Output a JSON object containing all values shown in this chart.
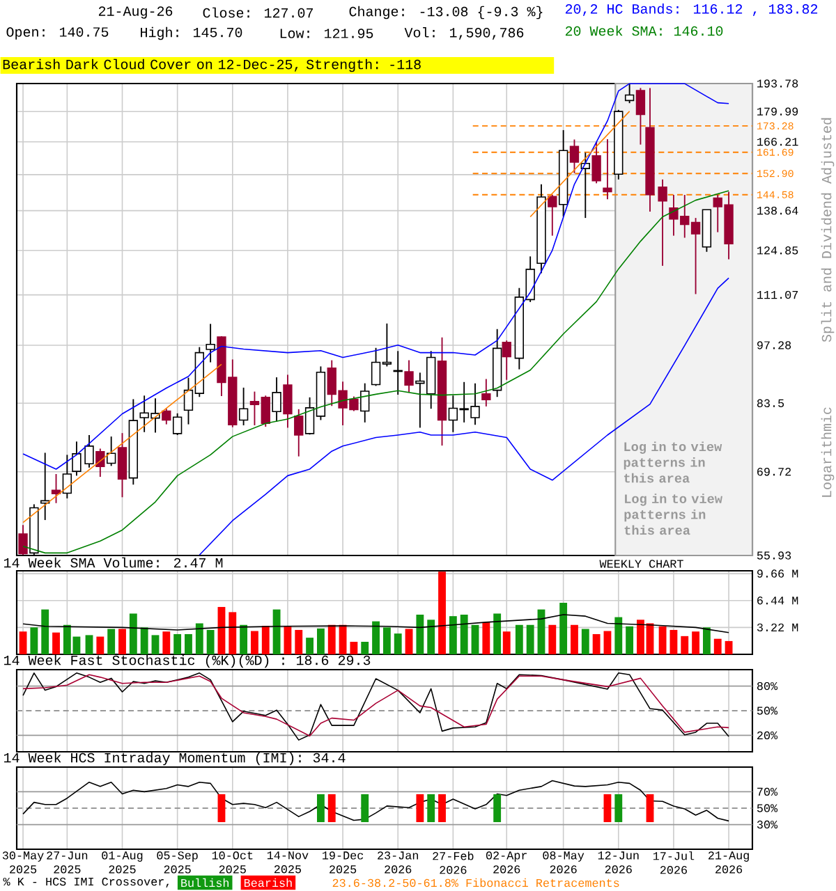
{
  "chart_data": [
    {
      "type": "candlestick",
      "ylabel": "Split and Dividend Adjusted",
      "log": true,
      "grid": true,
      "tick_labels": "y",
      "colors": [
        "#990033",
        "#ffffff",
        "#ffffff",
        "#990033",
        "#ffffff",
        "#ffffff",
        "#ffffff",
        "#990033",
        "#ffffff",
        "#990033",
        "#ffffff",
        "#ffffff",
        "#ffffff",
        "#990033",
        "#ffffff",
        "#ffffff",
        "#ffffff",
        "#ffffff",
        "#990033",
        "#990033",
        "#ffffff",
        "#990033",
        "#990033",
        "#ffffff",
        "#990033",
        "#990033",
        "#ffffff",
        "#ffffff",
        "#990033",
        "#990033",
        "#990033",
        "#ffffff",
        "#ffffff",
        "#ffffff",
        "#ffffff",
        "#990033",
        "#ffffff",
        "#ffffff",
        "#990033",
        "#ffffff",
        "#ffffff",
        "#ffffff",
        "#990033",
        "#ffffff",
        "#990033",
        "#ffffff",
        "#ffffff",
        "#ffffff",
        "#990033",
        "#ffffff",
        "#990033",
        "#ffffff",
        "#990033",
        "#990033",
        "#ffffff",
        "#ffffff",
        "#990033",
        "#990033",
        "#990033",
        "#990033",
        "#990033",
        "#990033",
        "#ffffff",
        "#990033",
        "#990033"
      ],
      "xlim": [
        "2025-05-26",
        "2026-09-05"
      ],
      "ylim": [
        55.93,
        193.78
      ],
      "xticks": [
        {
          "value": "2025-05-30",
          "label": null
        },
        {
          "value": "2025-06-27",
          "label": null
        },
        {
          "value": "2025-08-01",
          "label": null
        },
        {
          "value": "2025-09-05",
          "label": null
        },
        {
          "value": "2025-10-10",
          "label": null
        },
        {
          "value": "2025-11-14",
          "label": null
        },
        {
          "value": "2025-12-19",
          "label": null
        },
        {
          "value": "2026-01-23",
          "label": null
        },
        {
          "value": "2026-02-27",
          "label": null
        },
        {
          "value": "2026-04-02",
          "label": null
        },
        {
          "value": "2026-05-08",
          "label": null
        },
        {
          "value": "2026-06-12",
          "label": null
        },
        {
          "value": "2026-07-17",
          "label": null
        },
        {
          "value": "2026-08-21",
          "label": null
        }
      ],
      "yticks": [
        55.93,
        69.72,
        83.5,
        97.28,
        111.07,
        124.85,
        138.64,
        {
          "value": 152.42,
          "label": null
        },
        166.21,
        179.99,
        193.78
      ],
      "x": [
        "2025-05-30",
        "2025-06-06",
        "2025-06-13",
        "2025-06-20",
        "2025-06-27",
        "2025-07-03",
        "2025-07-11",
        "2025-07-18",
        "2025-07-25",
        "2025-08-01",
        "2025-08-08",
        "2025-08-15",
        "2025-08-22",
        "2025-08-29",
        "2025-09-05",
        "2025-09-12",
        "2025-09-19",
        "2025-09-26",
        "2025-10-03",
        "2025-10-10",
        "2025-10-17",
        "2025-10-24",
        "2025-10-31",
        "2025-11-07",
        "2025-11-14",
        "2025-11-21",
        "2025-11-28",
        "2025-12-05",
        "2025-12-12",
        "2025-12-19",
        "2025-12-26",
        "2026-01-02",
        "2026-01-09",
        "2026-01-16",
        "2026-01-23",
        "2026-01-30",
        "2026-02-06",
        "2026-02-13",
        "2026-02-20",
        "2026-02-27",
        "2026-03-06",
        "2026-03-13",
        "2026-03-20",
        "2026-03-27",
        "2026-04-02",
        "2026-04-10",
        "2026-04-17",
        "2026-04-24",
        "2026-05-01",
        "2026-05-08",
        "2026-05-15",
        "2026-05-22",
        "2026-05-29",
        "2026-06-05",
        "2026-06-12",
        "2026-06-19",
        "2026-06-26",
        "2026-07-02",
        "2026-07-10",
        "2026-07-17",
        "2026-07-24",
        "2026-07-31",
        "2026-08-07",
        "2026-08-14",
        "2026-08-21"
      ],
      "ohlc": [
        [
          59.2,
          60.6,
          56.0,
          56.2
        ],
        [
          56.3,
          64.0,
          56.0,
          63.4
        ],
        [
          64.2,
          73.3,
          61.4,
          64.6
        ],
        [
          66.4,
          69.3,
          64.2,
          65.8
        ],
        [
          65.9,
          72.9,
          65.0,
          69.3
        ],
        [
          69.8,
          75.5,
          69.0,
          73.1
        ],
        [
          71.2,
          76.8,
          70.5,
          74.6
        ],
        [
          73.5,
          74.1,
          68.8,
          70.7
        ],
        [
          71.3,
          76.5,
          70.8,
          73.2
        ],
        [
          74.3,
          77.2,
          65.2,
          68.4
        ],
        [
          68.6,
          84.4,
          67.4,
          79.8
        ],
        [
          80.4,
          85.2,
          77.4,
          81.4
        ],
        [
          80.3,
          84.6,
          77.3,
          81.3
        ],
        [
          81.8,
          82.3,
          79.0,
          79.9
        ],
        [
          77.1,
          81.3,
          76.8,
          80.5
        ],
        [
          82.0,
          89.3,
          79.0,
          86.4
        ],
        [
          85.7,
          96.8,
          84.9,
          95.4
        ],
        [
          96.2,
          102.9,
          93.0,
          97.5
        ],
        [
          99.4,
          99.6,
          85.1,
          88.2
        ],
        [
          89.4,
          93.7,
          78.4,
          78.9
        ],
        [
          79.9,
          87.0,
          78.8,
          82.3
        ],
        [
          83.9,
          86.1,
          78.8,
          83.2
        ],
        [
          84.8,
          85.2,
          78.5,
          79.2
        ],
        [
          81.7,
          89.4,
          79.6,
          85.9
        ],
        [
          87.6,
          90.0,
          78.3,
          81.2
        ],
        [
          80.7,
          82.2,
          72.6,
          76.8
        ],
        [
          77.1,
          84.8,
          76.9,
          82.5
        ],
        [
          80.7,
          92.0,
          79.9,
          90.6
        ],
        [
          91.6,
          93.5,
          82.9,
          85.5
        ],
        [
          86.3,
          88.4,
          78.8,
          82.5
        ],
        [
          84.4,
          85.0,
          81.8,
          82.1
        ],
        [
          81.8,
          88.0,
          79.4,
          86.2
        ],
        [
          87.7,
          96.6,
          87.4,
          93.0
        ],
        [
          92.6,
          103.0,
          92.0,
          93.0
        ],
        [
          90.8,
          95.8,
          85.4,
          91.0
        ],
        [
          90.7,
          93.5,
          86.0,
          87.6
        ],
        [
          88.0,
          90.5,
          78.3,
          88.5
        ],
        [
          85.6,
          95.8,
          82.3,
          94.2
        ],
        [
          93.3,
          99.3,
          74.7,
          79.9
        ],
        [
          79.9,
          85.2,
          77.4,
          82.4
        ],
        [
          82.1,
          88.3,
          79.4,
          82.3
        ],
        [
          80.4,
          88.0,
          78.9,
          82.8
        ],
        [
          85.6,
          89.0,
          82.8,
          84.3
        ],
        [
          86.4,
          101.5,
          84.9,
          96.5
        ],
        [
          98.0,
          98.5,
          88.8,
          94.4
        ],
        [
          94.0,
          113.1,
          91.3,
          110.4
        ],
        [
          109.7,
          122.9,
          109.0,
          118.8
        ],
        [
          120.7,
          148.6,
          117.6,
          143.7
        ],
        [
          143.9,
          144.5,
          129.8,
          140.1
        ],
        [
          140.9,
          171.4,
          136.5,
          162.4
        ],
        [
          164.2,
          167.2,
          153.0,
          157.5
        ],
        [
          154.9,
          161.5,
          136.0,
          157.0
        ],
        [
          160.2,
          166.1,
          149.0,
          150.0
        ],
        [
          147.1,
          167.3,
          142.9,
          145.7
        ],
        [
          152.6,
          180.8,
          150.5,
          180.0
        ],
        [
          185.3,
          193.5,
          184.0,
          188.0
        ],
        [
          190.2,
          191.5,
          165.0,
          178.6
        ],
        [
          172.5,
          191.5,
          138.3,
          144.6
        ],
        [
          147.5,
          150.5,
          119.9,
          142.2
        ],
        [
          139.6,
          144.5,
          129.8,
          135.6
        ],
        [
          136.6,
          144.5,
          129.1,
          133.7
        ],
        [
          134.4,
          136.0,
          111.3,
          130.4
        ],
        [
          126.0,
          139.0,
          124.4,
          139.0
        ],
        [
          143.3,
          144.5,
          131.0,
          140.1
        ],
        [
          140.75,
          145.7,
          121.95,
          127.07
        ]
      ],
      "series": [
        {
          "type": "line",
          "color": "#0000ff",
          "x": [
            "2025-05-30",
            "2025-06-20",
            "2025-07-03",
            "2025-08-01",
            "2025-08-29",
            "2025-09-12",
            "2025-09-26",
            "2025-10-03",
            "2025-10-17",
            "2025-11-14",
            "2025-12-05",
            "2025-12-19",
            "2026-01-09",
            "2026-01-23",
            "2026-02-06",
            "2026-02-27",
            "2026-03-13",
            "2026-03-27",
            "2026-04-17",
            "2026-05-01",
            "2026-05-15",
            "2026-06-05",
            "2026-06-12",
            "2026-06-19",
            "2026-07-02",
            "2026-07-24",
            "2026-08-14",
            "2026-08-21"
          ],
          "values": [
            73.1,
            70.2,
            72.9,
            81.2,
            86.9,
            89.6,
            95.4,
            97.0,
            96.3,
            95.4,
            95.9,
            94.2,
            95.9,
            97.3,
            95.4,
            95.4,
            94.8,
            98.5,
            111.8,
            124.9,
            148.6,
            175.6,
            190.0,
            193.7,
            193.7,
            193.7,
            184.2,
            183.82
          ]
        },
        {
          "type": "line",
          "color": "#0000ff",
          "x": [
            "2025-09-19",
            "2025-10-10",
            "2025-10-31",
            "2025-11-14",
            "2025-11-28",
            "2025-12-12",
            "2025-12-19",
            "2026-01-09",
            "2026-01-23",
            "2026-02-06",
            "2026-02-13",
            "2026-02-27",
            "2026-03-13",
            "2026-04-02",
            "2026-04-17",
            "2026-05-01",
            "2026-06-05",
            "2026-07-02",
            "2026-07-24",
            "2026-08-14",
            "2026-08-21"
          ],
          "values": [
            56.0,
            61.3,
            65.7,
            69.0,
            70.2,
            73.6,
            74.6,
            76.3,
            76.8,
            77.4,
            76.8,
            76.8,
            77.4,
            76.3,
            70.2,
            68.2,
            76.8,
            83.3,
            97.2,
            113.0,
            116.12
          ]
        },
        {
          "type": "line",
          "color": "#008000",
          "x": [
            "2025-05-30",
            "2025-06-13",
            "2025-06-27",
            "2025-07-18",
            "2025-08-01",
            "2025-08-22",
            "2025-09-05",
            "2025-09-26",
            "2025-10-10",
            "2025-10-31",
            "2025-11-14",
            "2025-12-05",
            "2025-12-19",
            "2026-01-09",
            "2026-01-23",
            "2026-02-06",
            "2026-02-20",
            "2026-03-13",
            "2026-03-27",
            "2026-04-17",
            "2026-05-08",
            "2026-05-29",
            "2026-06-12",
            "2026-06-26",
            "2026-07-10",
            "2026-07-31",
            "2026-08-21"
          ],
          "values": [
            57.3,
            56.3,
            56.3,
            58.1,
            59.8,
            64.4,
            69.0,
            72.9,
            76.5,
            79.2,
            80.1,
            82.7,
            84.1,
            85.5,
            86.3,
            85.5,
            85.3,
            85.6,
            86.9,
            91.1,
            100.2,
            109.1,
            118.9,
            127.9,
            136.4,
            142.5,
            146.1
          ]
        },
        {
          "type": "line",
          "color": "#ff8000",
          "x": [
            "2025-05-30",
            "2025-10-03"
          ],
          "values": [
            61.0,
            92.5
          ]
        },
        {
          "type": "line",
          "color": "#ff8000",
          "x": [
            "2026-04-17",
            "2026-06-19"
          ],
          "values": [
            136.4,
            180.1
          ]
        }
      ],
      "ref_lines": [
        {
          "axis": "y",
          "value": 173.28,
          "label": "173.28",
          "color": "#ff8000",
          "line_style": "dashed"
        },
        {
          "axis": "y",
          "value": 161.69,
          "label": "161.69",
          "color": "#ff8000",
          "line_style": "dashed"
        },
        {
          "axis": "y",
          "value": 152.9,
          "label": "152.90",
          "color": "#ff8000",
          "line_style": "dashed"
        },
        {
          "axis": "y",
          "value": 144.58,
          "label": "144.58",
          "color": "#ff8000",
          "line_style": "dashed"
        }
      ],
      "bands": [
        {
          "axis": "x",
          "from": "2026-06-10",
          "to": "2026-09-05",
          "label": "Log in to view patterns in this area",
          "color": "#f2f2f2"
        }
      ],
      "annotations": [
        "21-Aug-26",
        "Close: 127.07",
        "Change: -13.08 {-9.3 %}",
        "Open: 140.75",
        "High: 145.70",
        "Low: 121.95",
        "Vol: 1,590,786",
        "20,2 HC Bands: 116.12 , 183.82",
        "20 Week SMA: 146.10",
        "Bearish Dark Cloud Cover on 12-Dec-25, Strength: -118",
        "Logarithmic",
        "WEEKLY CHART",
        "Log in to view patterns in this area",
        "23.6-38.2-50-61.8% Fibonacci Retracements"
      ]
    },
    {
      "type": "bar",
      "title": "14 Week SMA Volume: 2.47 M",
      "grid": true,
      "tick_labels": "y",
      "xlim": [
        "2025-05-26",
        "2026-09-05"
      ],
      "ylim": [
        0,
        10
      ],
      "xticks": [
        {
          "value": "2025-05-30",
          "label": null
        },
        {
          "value": "2025-06-27",
          "label": null
        },
        {
          "value": "2025-08-01",
          "label": null
        },
        {
          "value": "2025-09-05",
          "label": null
        },
        {
          "value": "2025-10-10",
          "label": null
        },
        {
          "value": "2025-11-14",
          "label": null
        },
        {
          "value": "2025-12-19",
          "label": null
        },
        {
          "value": "2026-01-23",
          "label": null
        },
        {
          "value": "2026-02-27",
          "label": null
        },
        {
          "value": "2026-04-02",
          "label": null
        },
        {
          "value": "2026-05-08",
          "label": null
        },
        {
          "value": "2026-06-12",
          "label": null
        },
        {
          "value": "2026-07-17",
          "label": null
        },
        {
          "value": "2026-08-21",
          "label": null
        }
      ],
      "yticks": [
        {
          "value": 3.22,
          "label": "3.22 M"
        },
        {
          "value": 6.44,
          "label": "6.44 M"
        },
        {
          "value": 9.66,
          "label": "9.66 M"
        }
      ],
      "x": [
        "2025-05-30",
        "2025-06-06",
        "2025-06-13",
        "2025-06-20",
        "2025-06-27",
        "2025-07-03",
        "2025-07-11",
        "2025-07-18",
        "2025-07-25",
        "2025-08-01",
        "2025-08-08",
        "2025-08-15",
        "2025-08-22",
        "2025-08-29",
        "2025-09-05",
        "2025-09-12",
        "2025-09-19",
        "2025-09-26",
        "2025-10-03",
        "2025-10-10",
        "2025-10-17",
        "2025-10-24",
        "2025-10-31",
        "2025-11-07",
        "2025-11-14",
        "2025-11-21",
        "2025-11-28",
        "2025-12-05",
        "2025-12-12",
        "2025-12-19",
        "2025-12-26",
        "2026-01-02",
        "2026-01-09",
        "2026-01-16",
        "2026-01-23",
        "2026-01-30",
        "2026-02-06",
        "2026-02-13",
        "2026-02-20",
        "2026-02-27",
        "2026-03-06",
        "2026-03-13",
        "2026-03-20",
        "2026-03-27",
        "2026-04-02",
        "2026-04-10",
        "2026-04-17",
        "2026-04-24",
        "2026-05-01",
        "2026-05-08",
        "2026-05-15",
        "2026-05-22",
        "2026-05-29",
        "2026-06-05",
        "2026-06-12",
        "2026-06-19",
        "2026-06-26",
        "2026-07-02",
        "2026-07-10",
        "2026-07-17",
        "2026-07-24",
        "2026-07-31",
        "2026-08-07",
        "2026-08-14",
        "2026-08-21"
      ],
      "series": [
        {
          "type": "bar",
          "values": [
            2.73,
            3.22,
            5.37,
            2.61,
            3.52,
            2.12,
            2.3,
            2.12,
            3.04,
            3.04,
            4.88,
            3.22,
            2.3,
            2.73,
            2.42,
            2.42,
            3.71,
            2.92,
            5.67,
            5.05,
            3.52,
            2.79,
            3.41,
            5.37,
            3.35,
            2.92,
            1.99,
            3.09,
            3.52,
            3.52,
            1.5,
            1.5,
            3.95,
            3.22,
            2.49,
            3.04,
            4.75,
            4.14,
            9.9,
            4.57,
            4.75,
            3.52,
            3.84,
            4.88,
            2.73,
            3.52,
            3.52,
            5.37,
            3.52,
            6.17,
            3.52,
            3.04,
            2.42,
            2.79,
            4.45,
            3.35,
            4.14,
            3.71,
            3.35,
            2.92,
            2.18,
            2.73,
            3.22,
            1.86,
            1.59
          ],
          "colors": [
            "#ff0000",
            "#119911",
            "#119911",
            "#ff0000",
            "#119911",
            "#119911",
            "#119911",
            "#ff0000",
            "#119911",
            "#ff0000",
            "#119911",
            "#119911",
            "#119911",
            "#ff0000",
            "#119911",
            "#119911",
            "#119911",
            "#119911",
            "#ff0000",
            "#ff0000",
            "#119911",
            "#ff0000",
            "#ff0000",
            "#119911",
            "#ff0000",
            "#ff0000",
            "#119911",
            "#119911",
            "#ff0000",
            "#ff0000",
            "#ff0000",
            "#119911",
            "#119911",
            "#119911",
            "#119911",
            "#ff0000",
            "#119911",
            "#119911",
            "#ff0000",
            "#119911",
            "#119911",
            "#119911",
            "#ff0000",
            "#119911",
            "#ff0000",
            "#119911",
            "#119911",
            "#119911",
            "#ff0000",
            "#119911",
            "#ff0000",
            "#119911",
            "#ff0000",
            "#ff0000",
            "#119911",
            "#119911",
            "#ff0000",
            "#ff0000",
            "#ff0000",
            "#ff0000",
            "#ff0000",
            "#ff0000",
            "#119911",
            "#ff0000",
            "#ff0000"
          ]
        },
        {
          "type": "line",
          "color": "#000000",
          "x": [
            "2025-05-30",
            "2025-06-13",
            "2025-08-01",
            "2025-09-05",
            "2025-10-03",
            "2025-11-07",
            "2025-12-19",
            "2026-01-16",
            "2026-02-06",
            "2026-02-27",
            "2026-03-20",
            "2026-04-24",
            "2026-05-08",
            "2026-05-22",
            "2026-06-05",
            "2026-07-02",
            "2026-07-31",
            "2026-08-21"
          ],
          "values": [
            3.65,
            3.35,
            3.22,
            2.92,
            3.22,
            3.35,
            3.41,
            3.35,
            3.22,
            3.52,
            3.84,
            4.24,
            4.75,
            4.57,
            3.71,
            3.52,
            3.22,
            2.6
          ]
        }
      ]
    },
    {
      "type": "line",
      "title": "14 Week Fast Stochastic (%K)(%D) : 18.6 29.3",
      "grid": "x",
      "tick_labels": "y",
      "xlim": [
        "2025-05-26",
        "2026-09-05"
      ],
      "ylim": [
        0,
        100
      ],
      "xticks": [
        {
          "value": "2025-05-30",
          "label": null
        },
        {
          "value": "2025-06-27",
          "label": null
        },
        {
          "value": "2025-08-01",
          "label": null
        },
        {
          "value": "2025-09-05",
          "label": null
        },
        {
          "value": "2025-10-10",
          "label": null
        },
        {
          "value": "2025-11-14",
          "label": null
        },
        {
          "value": "2025-12-19",
          "label": null
        },
        {
          "value": "2026-01-23",
          "label": null
        },
        {
          "value": "2026-02-27",
          "label": null
        },
        {
          "value": "2026-04-02",
          "label": null
        },
        {
          "value": "2026-05-08",
          "label": null
        },
        {
          "value": "2026-06-12",
          "label": null
        },
        {
          "value": "2026-07-17",
          "label": null
        },
        {
          "value": "2026-08-21",
          "label": null
        }
      ],
      "yticks": [
        {
          "value": 20,
          "label": "20%"
        },
        {
          "value": 50,
          "label": "50%"
        },
        {
          "value": 80,
          "label": "80%"
        }
      ],
      "ref_lines": [
        {
          "axis": "y",
          "value": 20,
          "color": "#999999"
        },
        {
          "axis": "y",
          "value": 50,
          "color": "#999999",
          "line_style": "dashed"
        },
        {
          "axis": "y",
          "value": 80,
          "color": "#999999"
        }
      ],
      "series": [
        {
          "color": "#000000",
          "x": [
            "2025-05-30",
            "2025-06-06",
            "2025-06-13",
            "2025-06-20",
            "2025-07-03",
            "2025-07-11",
            "2025-07-18",
            "2025-07-25",
            "2025-08-01",
            "2025-08-08",
            "2025-08-15",
            "2025-08-22",
            "2025-08-29",
            "2025-09-12",
            "2025-09-19",
            "2025-09-26",
            "2025-10-10",
            "2025-10-17",
            "2025-10-31",
            "2025-11-07",
            "2025-11-14",
            "2025-11-21",
            "2025-11-28",
            "2025-12-05",
            "2025-12-12",
            "2025-12-26",
            "2026-01-09",
            "2026-01-23",
            "2026-02-06",
            "2026-02-13",
            "2026-02-20",
            "2026-02-27",
            "2026-03-13",
            "2026-03-20",
            "2026-03-27",
            "2026-04-02",
            "2026-04-10",
            "2026-04-24",
            "2026-05-08",
            "2026-06-05",
            "2026-06-12",
            "2026-06-19",
            "2026-07-02",
            "2026-07-10",
            "2026-07-24",
            "2026-07-31",
            "2026-08-07",
            "2026-08-14",
            "2026-08-21"
          ],
          "values": [
            68.5,
            95.9,
            74.9,
            79.3,
            95.9,
            90.8,
            84.5,
            89.5,
            72.9,
            85.6,
            83.2,
            86.3,
            84.5,
            90.8,
            95.9,
            87.6,
            36.6,
            49.3,
            44.2,
            50.7,
            33.4,
            14.3,
            20.6,
            57.6,
            32.1,
            32.1,
            89.0,
            74.9,
            47.5,
            76.8,
            25.1,
            28.9,
            30.3,
            35.4,
            83.2,
            76.8,
            93.9,
            92.8,
            87.6,
            76.2,
            95.9,
            93.9,
            52.5,
            50.7,
            20.6,
            23.8,
            34.7,
            34.7,
            18.6
          ]
        },
        {
          "color": "#aa0033",
          "x": [
            "2025-05-30",
            "2025-06-13",
            "2025-06-27",
            "2025-07-11",
            "2025-07-18",
            "2025-08-01",
            "2025-08-15",
            "2025-08-29",
            "2025-09-19",
            "2025-09-26",
            "2025-10-03",
            "2025-10-17",
            "2025-10-31",
            "2025-11-07",
            "2025-11-28",
            "2025-12-05",
            "2025-12-12",
            "2025-12-26",
            "2026-01-09",
            "2026-01-23",
            "2026-02-06",
            "2026-02-13",
            "2026-03-06",
            "2026-03-20",
            "2026-03-27",
            "2026-04-10",
            "2026-04-24",
            "2026-05-08",
            "2026-06-05",
            "2026-06-26",
            "2026-07-10",
            "2026-07-24",
            "2026-08-14",
            "2026-08-21"
          ],
          "values": [
            76.8,
            78.0,
            81.2,
            93.9,
            90.8,
            83.2,
            84.5,
            84.5,
            92.1,
            85.6,
            65.2,
            47.5,
            43.0,
            39.7,
            19.3,
            34.7,
            41.0,
            38.5,
            59.0,
            74.9,
            55.8,
            53.8,
            30.3,
            33.4,
            64.1,
            92.1,
            92.1,
            87.6,
            79.3,
            89.5,
            55.8,
            23.8,
            30.3,
            29.3
          ]
        }
      ]
    },
    {
      "type": "line",
      "title": "14 Week HCS Intraday Momentum (IMI): 34.4",
      "grid": "x",
      "legend": "bottom",
      "legend_title": "% K - HCS IMI Crossover,",
      "xlim": [
        "2025-05-26",
        "2026-09-05"
      ],
      "ylim": [
        0,
        100
      ],
      "xticks": [
        {
          "value": "2025-05-30",
          "label": "30-May 2025"
        },
        {
          "value": "2025-06-27",
          "label": "27-Jun 2025"
        },
        {
          "value": "2025-08-01",
          "label": "01-Aug 2025"
        },
        {
          "value": "2025-09-05",
          "label": "05-Sep 2025"
        },
        {
          "value": "2025-10-10",
          "label": "10-Oct 2025"
        },
        {
          "value": "2025-11-14",
          "label": "14-Nov 2025"
        },
        {
          "value": "2025-12-19",
          "label": "19-Dec 2025"
        },
        {
          "value": "2026-01-23",
          "label": "23-Jan 2026"
        },
        {
          "value": "2026-02-27",
          "label": "27-Feb 2026"
        },
        {
          "value": "2026-04-02",
          "label": "02-Apr 2026"
        },
        {
          "value": "2026-05-08",
          "label": "08-May 2026"
        },
        {
          "value": "2026-06-12",
          "label": "12-Jun 2026"
        },
        {
          "value": "2026-07-17",
          "label": "17-Jul 2026"
        },
        {
          "value": "2026-08-21",
          "label": "21-Aug 2026"
        }
      ],
      "yticks": [
        {
          "value": 30,
          "label": "30%"
        },
        {
          "value": 50,
          "label": "50%"
        },
        {
          "value": 70,
          "label": "70%"
        }
      ],
      "ref_lines": [
        {
          "axis": "y",
          "value": 30,
          "color": "#999999"
        },
        {
          "axis": "y",
          "value": 50,
          "color": "#999999",
          "line_style": "dashed"
        },
        {
          "axis": "y",
          "value": 70,
          "color": "#999999"
        }
      ],
      "series": [
        {
          "type": "line",
          "color": "#000000",
          "x": [
            "2025-05-30",
            "2025-06-06",
            "2025-06-13",
            "2025-06-20",
            "2025-06-27",
            "2025-07-11",
            "2025-07-18",
            "2025-07-25",
            "2025-08-01",
            "2025-08-08",
            "2025-08-15",
            "2025-08-29",
            "2025-09-05",
            "2025-09-12",
            "2025-09-19",
            "2025-09-26",
            "2025-10-03",
            "2025-10-10",
            "2025-10-17",
            "2025-10-24",
            "2025-10-31",
            "2025-11-07",
            "2025-11-21",
            "2025-11-28",
            "2025-12-05",
            "2025-12-12",
            "2025-12-26",
            "2026-01-02",
            "2026-01-09",
            "2026-01-16",
            "2026-01-30",
            "2026-02-06",
            "2026-02-13",
            "2026-02-20",
            "2026-02-27",
            "2026-03-13",
            "2026-03-20",
            "2026-03-27",
            "2026-04-02",
            "2026-04-10",
            "2026-04-24",
            "2026-05-01",
            "2026-05-15",
            "2026-05-22",
            "2026-06-05",
            "2026-06-12",
            "2026-06-19",
            "2026-06-26",
            "2026-07-02",
            "2026-07-10",
            "2026-07-17",
            "2026-07-24",
            "2026-07-31",
            "2026-08-07",
            "2026-08-14",
            "2026-08-21"
          ],
          "values": [
            42.9,
            57.1,
            54.4,
            54.4,
            62.1,
            81.6,
            76.4,
            81.6,
            67.3,
            71.8,
            70.0,
            73.9,
            78.4,
            76.4,
            81.6,
            80.2,
            62.1,
            54.4,
            55.8,
            54.4,
            50.6,
            57.1,
            39.7,
            46.0,
            54.4,
            46.0,
            35.2,
            36.5,
            44.2,
            52.6,
            50.6,
            57.1,
            61.0,
            54.4,
            61.0,
            49.2,
            54.4,
            67.3,
            65.5,
            71.8,
            76.4,
            83.4,
            77.0,
            76.4,
            78.4,
            81.6,
            80.2,
            71.8,
            58.9,
            58.3,
            52.6,
            49.2,
            41.5,
            47.4,
            37.7,
            34.4
          ]
        },
        {
          "type": "bar",
          "name": "Bullish",
          "color": "#119911",
          "x": [
            "2025-12-05",
            "2026-01-02",
            "2026-02-13",
            "2026-03-27",
            "2026-06-12"
          ],
          "base": [
            33,
            33,
            33,
            33,
            33
          ],
          "values": [
            34,
            34,
            34,
            34,
            34
          ]
        },
        {
          "type": "bar",
          "name": "Bearish",
          "color": "#ff0000",
          "x": [
            "2025-10-03",
            "2025-12-12",
            "2026-02-06",
            "2026-02-20",
            "2026-06-05",
            "2026-07-02"
          ],
          "base": [
            33,
            33,
            33,
            33,
            33,
            33
          ],
          "values": [
            34,
            34,
            34,
            34,
            34,
            34
          ]
        }
      ]
    }
  ]
}
